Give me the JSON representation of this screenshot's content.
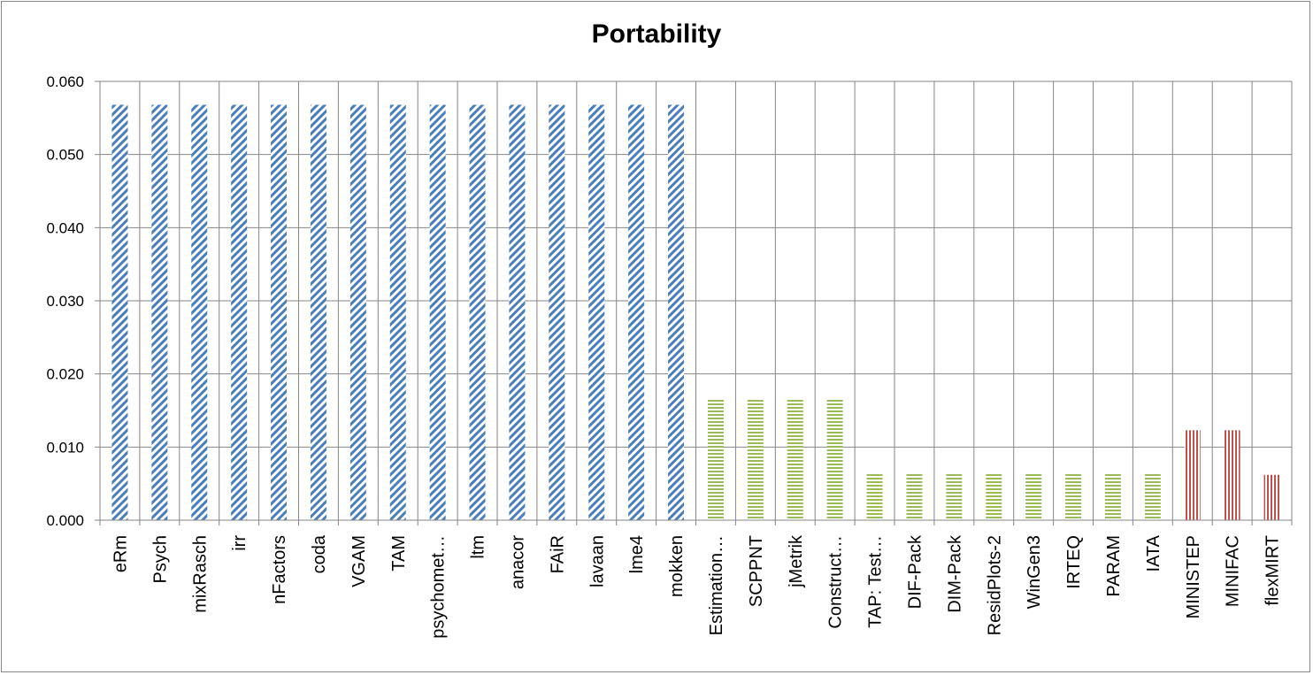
{
  "chart_data": {
    "type": "bar",
    "title": "Portability",
    "xlabel": "",
    "ylabel": "",
    "ylim": [
      0,
      0.06
    ],
    "yticks": [
      "0.000",
      "0.010",
      "0.020",
      "0.030",
      "0.040",
      "0.050",
      "0.060"
    ],
    "grid": true,
    "legend": "none",
    "categories": [
      "eRm",
      "Psych",
      "mixRasch",
      "irr",
      "nFactors",
      "coda",
      "VGAM",
      "TAM",
      "psychomet…",
      "ltm",
      "anacor",
      "FAiR",
      "lavaan",
      "lme4",
      "mokken",
      "Estimation…",
      "SCPPNT",
      "jMetrik",
      "Construct…",
      "TAP: Test…",
      "DIF-Pack",
      "DIM-Pack",
      "ResidPlots-2",
      "WinGen3",
      "IRTEQ",
      "PARAM",
      "IATA",
      "MINISTEP",
      "MINIFAC",
      "flexMIRT"
    ],
    "values": [
      0.0568,
      0.0568,
      0.0568,
      0.0568,
      0.0568,
      0.0568,
      0.0568,
      0.0568,
      0.0568,
      0.0568,
      0.0568,
      0.0568,
      0.0568,
      0.0568,
      0.0568,
      0.0165,
      0.0165,
      0.0165,
      0.0165,
      0.0063,
      0.0063,
      0.0063,
      0.0063,
      0.0063,
      0.0063,
      0.0063,
      0.0063,
      0.0123,
      0.0123,
      0.0062
    ],
    "bar_groups": [
      0,
      0,
      0,
      0,
      0,
      0,
      0,
      0,
      0,
      0,
      0,
      0,
      0,
      0,
      0,
      1,
      1,
      1,
      1,
      1,
      1,
      1,
      1,
      1,
      1,
      1,
      1,
      2,
      2,
      2
    ],
    "group_colors": [
      "#4a7ebb",
      "#9bbb59",
      "#c0504d"
    ],
    "group_patterns": [
      "diagonal",
      "horizontal",
      "vertical"
    ]
  }
}
